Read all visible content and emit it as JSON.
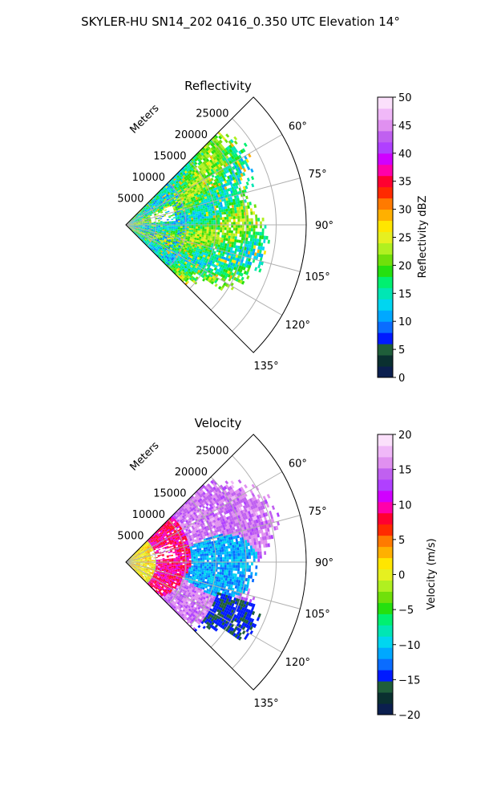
{
  "figure": {
    "title": "SKYLER-HU  SN14_202  0416_0.350 UTC Elevation 14°"
  },
  "chart_data": [
    {
      "type": "heatmap",
      "title": "Reflectivity",
      "radial_label": "Meters",
      "range_ticks": [
        "5000",
        "10000",
        "15000",
        "20000",
        "25000"
      ],
      "range_values": [
        5000,
        10000,
        15000,
        20000,
        25000
      ],
      "range_max": 30000,
      "azimuth_ticks": [
        "60°",
        "75°",
        "90°",
        "105°",
        "120°",
        "135°"
      ],
      "azimuth_values": [
        60,
        75,
        90,
        105,
        120,
        135
      ],
      "azimuth_range": [
        45,
        135
      ],
      "colorbar": {
        "label": "Reflectivity dBZ",
        "range": [
          0,
          50
        ],
        "ticks": [
          "0",
          "5",
          "10",
          "15",
          "20",
          "25",
          "30",
          "35",
          "40",
          "45",
          "50"
        ],
        "tick_values": [
          0,
          5,
          10,
          15,
          20,
          25,
          30,
          35,
          40,
          45,
          50
        ],
        "colors": [
          "#0b1f4f",
          "#0a3030",
          "#1f5e3a",
          "#001aff",
          "#0a6cff",
          "#00a8ff",
          "#00d6f0",
          "#00e6b4",
          "#00f070",
          "#25e00f",
          "#70e00a",
          "#b0f020",
          "#e6f020",
          "#ffe600",
          "#ffb000",
          "#ff7a00",
          "#ff2a00",
          "#ff0030",
          "#ff00aa",
          "#d000ff",
          "#b040ff",
          "#c060f0",
          "#e090f0",
          "#f0b8f8",
          "#fbe0fb"
        ]
      },
      "field_summary": "Dominant 15-25 dBZ (green/yellow-green) echoes filling the sector out to about 23000 m; scattered 5-12 dBZ (cyan) patches within 10000 m; isolated 25-30 dBZ yellow specks; gaps near 5000-8000 m at 70-85 degrees"
    },
    {
      "type": "heatmap",
      "title": "Velocity",
      "radial_label": "Meters",
      "range_ticks": [
        "5000",
        "10000",
        "15000",
        "20000",
        "25000"
      ],
      "range_values": [
        5000,
        10000,
        15000,
        20000,
        25000
      ],
      "range_max": 30000,
      "azimuth_ticks": [
        "60°",
        "75°",
        "90°",
        "105°",
        "120°",
        "135°"
      ],
      "azimuth_values": [
        60,
        75,
        90,
        105,
        120,
        135
      ],
      "azimuth_range": [
        45,
        135
      ],
      "colorbar": {
        "label": "Velocity (m/s)",
        "range": [
          -20,
          20
        ],
        "ticks": [
          "−20",
          "−15",
          "−10",
          "−5",
          "0",
          "5",
          "10",
          "15",
          "20"
        ],
        "tick_values": [
          -20,
          -15,
          -10,
          -5,
          0,
          5,
          10,
          15,
          20
        ],
        "colors": [
          "#0b1f4f",
          "#0a3030",
          "#1f5e3a",
          "#001aff",
          "#0a6cff",
          "#00a8ff",
          "#00d6f0",
          "#00e6b4",
          "#00f070",
          "#25e00f",
          "#70e00a",
          "#b0f020",
          "#e6f020",
          "#ffe600",
          "#ffb000",
          "#ff7a00",
          "#ff2a00",
          "#ff0030",
          "#ff00aa",
          "#d000ff",
          "#b040ff",
          "#c060f0",
          "#e090f0",
          "#f0b8f8",
          "#fbe0fb"
        ]
      },
      "field_summary": "Near radar 0 to +3 m/s (yellow/green) within 5000 m; +5 to +10 m/s (orange/red) band from 5000 to 12000 m; +12 to +17 m/s (magenta/purple) region 12000-20000 m at northern azimuths; -10 to -13 m/s (cyan) core 10000-20000 m around 80-110 degrees; -14 to -16 m/s (blue) specks toward 120 degrees"
    }
  ]
}
